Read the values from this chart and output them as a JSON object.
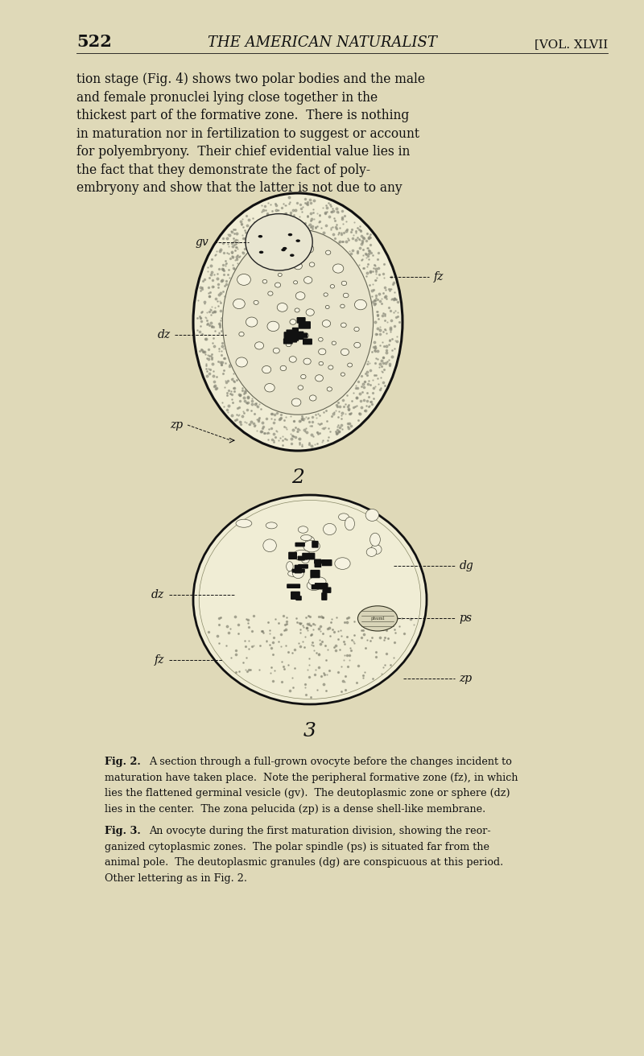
{
  "bg_color": "#dfd9b8",
  "page_width": 8.0,
  "page_height": 13.12,
  "header_page_num": "522",
  "header_journal": "THE AMERICAN NATURALIST",
  "header_vol": "[VOL. XLVII",
  "body_text_lines": [
    "tion stage (Fig. 4) shows two polar bodies and the male",
    "and female pronuclei lying close together in the",
    "thickest part of the formative zone.  There is nothing",
    "in maturation nor in fertilization to suggest or account",
    "for polyembryony.  Their chief evidential value lies in",
    "the fact that they demonstrate the fact of poly-",
    "embryony and show that the latter is not due to any"
  ],
  "fig2_number": "2",
  "fig3_number": "3",
  "caption_fig2_indent": "    ",
  "caption_fig2_title": "Fig. 2.",
  "caption_fig2_text": "  A section through a full-grown ovocyte before the changes incident to\nmaturation have taken place.  Note the peripheral formative zone (fz), in which\nlies the flattened germinal vesicle (gv).  The deutoplasmic zone or sphere (dz)\nlies in the center.  The zona pelucida (zp) is a dense shell-like membrane.",
  "caption_fig3_title": "Fig. 3.",
  "caption_fig3_text": "  An ovocyte during the first maturation division, showing the reor-\nganized cytoplasmic zones.  The polar spindle (ps) is situated far from the\nanimal pole.  The deutoplasmic granules (dg) are conspicuous at this period.\nOther lettering as in Fig. 2.",
  "text_color": "#111111",
  "diagram_edge_color": "#111111",
  "label_fontstyle": "italic"
}
